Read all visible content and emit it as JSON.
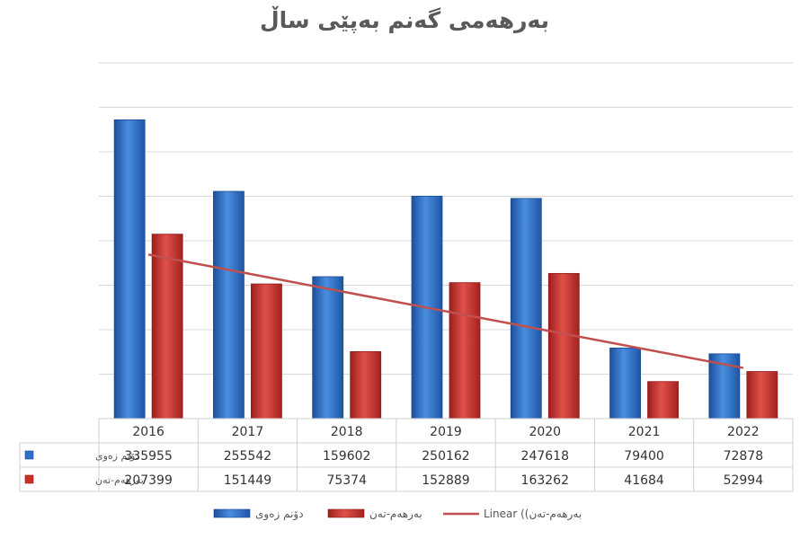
{
  "chart_data": {
    "type": "bar",
    "title": "بەرهەمی گەنم بەپێی ساڵ",
    "categories": [
      "2016",
      "2017",
      "2018",
      "2019",
      "2020",
      "2021",
      "2022"
    ],
    "series": [
      {
        "name": "دۆنم زەوی",
        "color": "#2e6fc8",
        "values": [
          335955,
          255542,
          159602,
          250162,
          247618,
          79400,
          72878
        ]
      },
      {
        "name": "بەرهەم-تەن",
        "color": "#c8302c",
        "values": [
          207399,
          151449,
          75374,
          152889,
          163262,
          41684,
          52994
        ]
      }
    ],
    "trendline": {
      "type": "linear",
      "series_index": 1,
      "label": "Linear ((بەرهەم-تەن",
      "color": "#c0504d"
    },
    "ylim": [
      0,
      400000
    ],
    "grid": true,
    "data_table": true,
    "legend_position": "bottom"
  }
}
